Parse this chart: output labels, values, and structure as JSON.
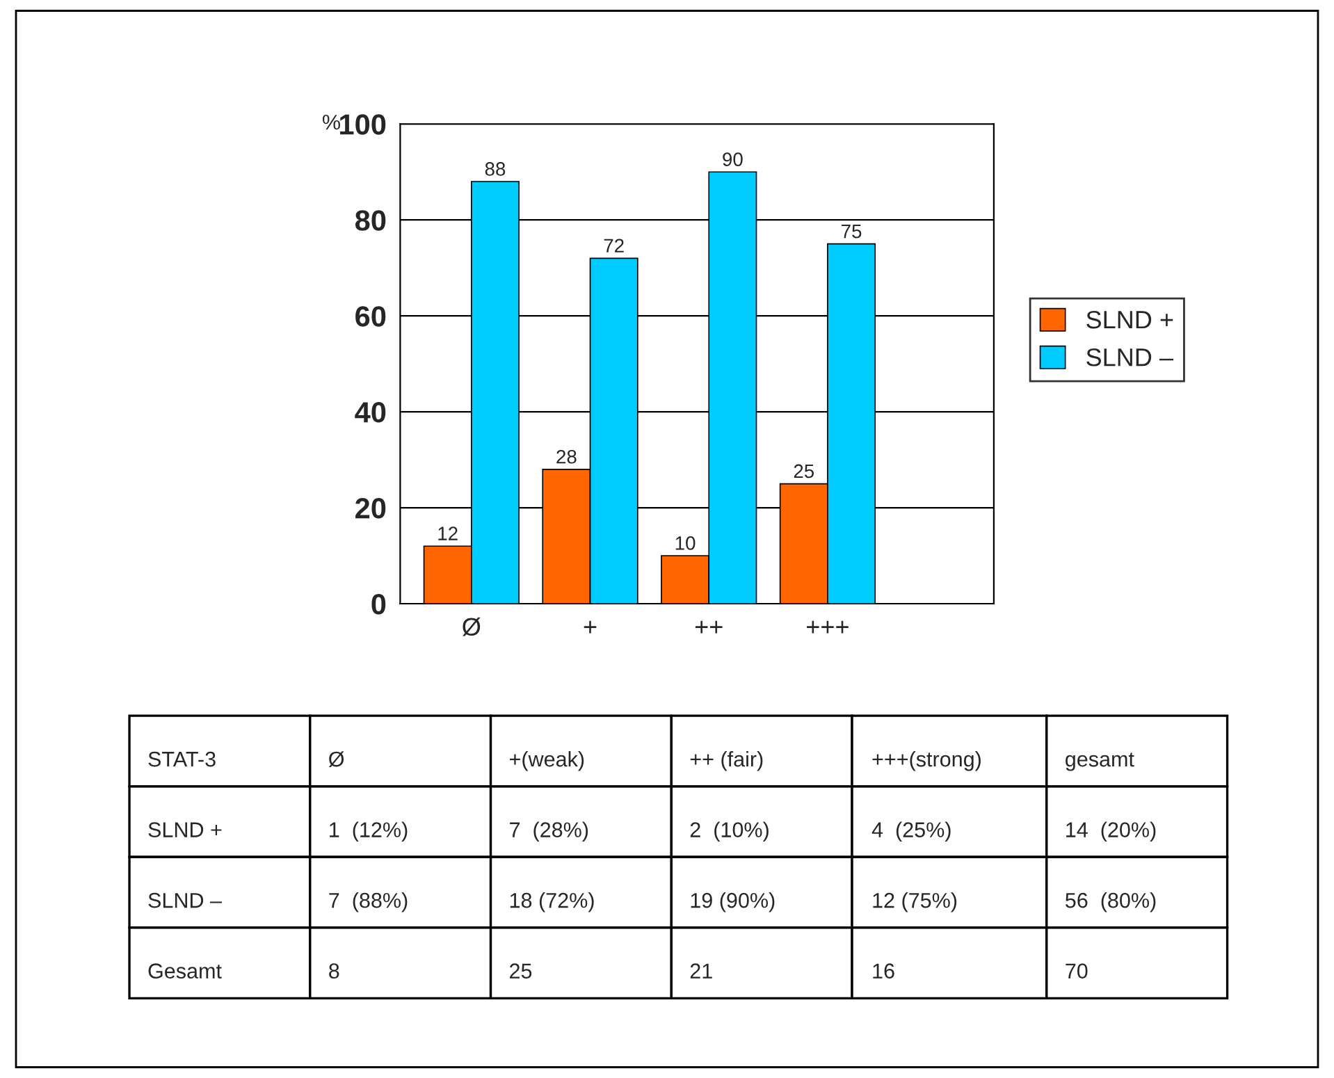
{
  "chart_data": {
    "type": "bar",
    "ylabel": "%",
    "categories": [
      "Ø",
      "+",
      "++",
      "+++"
    ],
    "series": [
      {
        "name": "SLND +",
        "color": "#ff6600",
        "values": [
          12,
          28,
          10,
          25
        ]
      },
      {
        "name": "SLND –",
        "color": "#00ccff",
        "values": [
          88,
          72,
          90,
          75
        ]
      }
    ],
    "ylim": [
      0,
      100
    ],
    "yticks": [
      0,
      20,
      40,
      60,
      80,
      100
    ],
    "grid": "y",
    "legend": "right",
    "data_labels": true,
    "annotations": [
      "STAT-3",
      "Ø",
      "+(weak)",
      "++ (fair)",
      "+++(strong)",
      "gesamt",
      "SLND +",
      "1  (12%)",
      "7  (28%)",
      "2  (10%)",
      "4  (25%)",
      "14  (20%)",
      "SLND –",
      "7  (88%)",
      "18 (72%)",
      "19 (90%)",
      "12 (75%)",
      "56  (80%)",
      "Gesamt",
      "8",
      "25",
      "21",
      "16",
      "70"
    ]
  }
}
